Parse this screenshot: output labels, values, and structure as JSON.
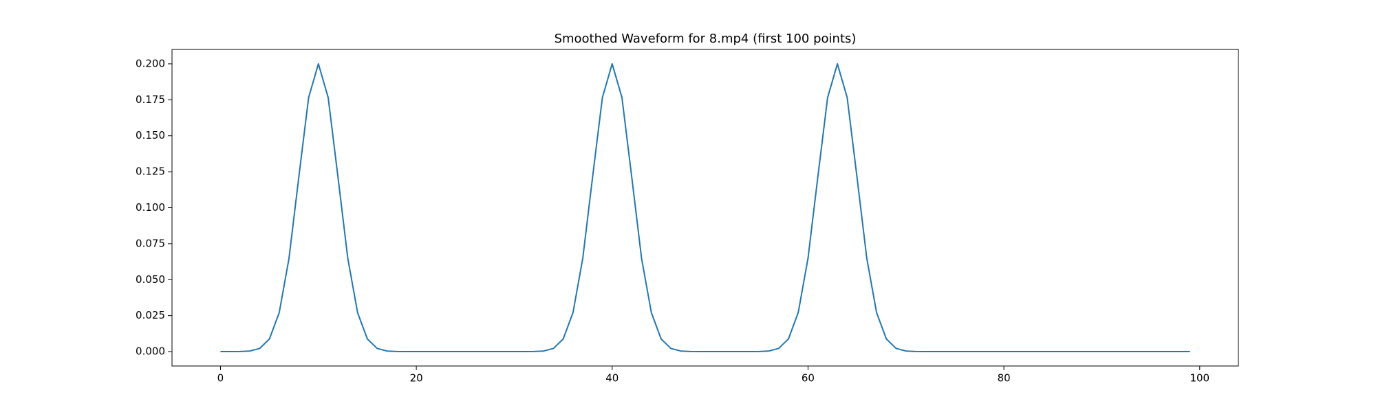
{
  "chart_data": {
    "type": "line",
    "title": "Smoothed Waveform for 8.mp4 (first 100 points)",
    "x": [
      0,
      1,
      2,
      3,
      4,
      5,
      6,
      7,
      8,
      9,
      10,
      11,
      12,
      13,
      14,
      15,
      16,
      17,
      18,
      19,
      20,
      21,
      22,
      23,
      24,
      25,
      26,
      27,
      28,
      29,
      30,
      31,
      32,
      33,
      34,
      35,
      36,
      37,
      38,
      39,
      40,
      41,
      42,
      43,
      44,
      45,
      46,
      47,
      48,
      49,
      50,
      51,
      52,
      53,
      54,
      55,
      56,
      57,
      58,
      59,
      60,
      61,
      62,
      63,
      64,
      65,
      66,
      67,
      68,
      69,
      70,
      71,
      72,
      73,
      74,
      75,
      76,
      77,
      78,
      79,
      80,
      81,
      82,
      83,
      84,
      85,
      86,
      87,
      88,
      89,
      90,
      91,
      92,
      93,
      94,
      95,
      96,
      97,
      98,
      99
    ],
    "series": [
      {
        "color": "#1f77b4",
        "values": [
          0,
          0,
          0.0001,
          0.0004,
          0.0022,
          0.0088,
          0.0271,
          0.0649,
          0.1213,
          0.1765,
          0.2,
          0.1765,
          0.1213,
          0.0649,
          0.0271,
          0.0088,
          0.0022,
          0.0004,
          0.0001,
          0,
          0,
          0,
          0,
          0,
          0,
          0,
          0,
          0,
          0,
          0,
          0,
          0,
          0.0001,
          0.0004,
          0.0022,
          0.0088,
          0.0271,
          0.0649,
          0.1213,
          0.1765,
          0.2,
          0.1765,
          0.1213,
          0.0649,
          0.0271,
          0.0088,
          0.0022,
          0.0004,
          0.0001,
          0,
          0,
          0,
          0,
          0,
          0,
          0.0001,
          0.0004,
          0.0022,
          0.0088,
          0.0271,
          0.0649,
          0.1213,
          0.1765,
          0.2,
          0.1765,
          0.1213,
          0.0649,
          0.0271,
          0.0088,
          0.0022,
          0.0004,
          0.0001,
          0,
          0,
          0,
          0,
          0,
          0,
          0,
          0,
          0,
          0,
          0,
          0,
          0,
          0,
          0,
          0,
          0,
          0,
          0,
          0,
          0,
          0,
          0,
          0,
          0,
          0,
          0,
          0
        ]
      }
    ],
    "xlim": [
      -4.95,
      103.95
    ],
    "xticks": [
      0,
      20,
      40,
      60,
      80,
      100
    ],
    "ylim": [
      -0.01,
      0.21
    ],
    "yticks": [
      {
        "value": 0,
        "label": "0.000"
      },
      {
        "value": 0.025,
        "label": "0.025"
      },
      {
        "value": 0.05,
        "label": "0.050"
      },
      {
        "value": 0.075,
        "label": "0.075"
      },
      {
        "value": 0.1,
        "label": "0.100"
      },
      {
        "value": 0.125,
        "label": "0.125"
      },
      {
        "value": 0.15,
        "label": "0.150"
      },
      {
        "value": 0.175,
        "label": "0.175"
      },
      {
        "value": 0.2,
        "label": "0.200"
      }
    ],
    "grid": false
  }
}
